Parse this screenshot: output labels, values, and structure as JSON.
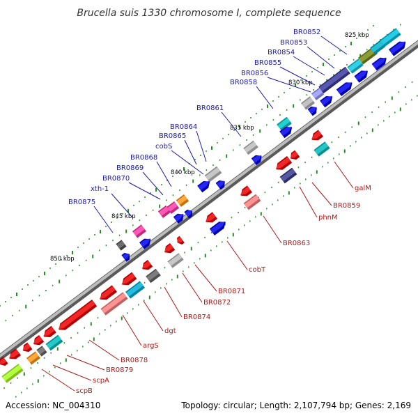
{
  "title": "Brucella suis 1330 chromosome I, complete sequence",
  "footer": {
    "accession": "Accession: NC_004310",
    "stats": "Topology: circular; Length: 2,107,794 bp; Genes: 2,169"
  },
  "kbp_ticks": [
    "825 kbp",
    "830 kbp",
    "835 kbp",
    "840 kbp",
    "845 kbp",
    "850 kbp"
  ],
  "upper_labels": [
    "BR0852",
    "BR0853",
    "BR0854",
    "BR0855",
    "BR0856",
    "BR0858",
    "BR0861",
    "BR0864",
    "BR0865",
    "cobS",
    "BR0868",
    "BR0869",
    "BR0870",
    "xth-1",
    "BR0875"
  ],
  "lower_labels": [
    "galM",
    "BR0859",
    "phnM",
    "BR0863",
    "cobT",
    "BR0871",
    "BR0872",
    "BR0874",
    "dgt",
    "argS",
    "BR0878",
    "BR0879",
    "scpA",
    "scpB"
  ],
  "colors": {
    "backbone": "#8c8c8c",
    "cds_forward": "#0000ee",
    "cds_reverse": "#ee0000",
    "upper_label": "#1a1aa8",
    "lower_label": "#b01818",
    "tick": "#2a8a2a"
  }
}
